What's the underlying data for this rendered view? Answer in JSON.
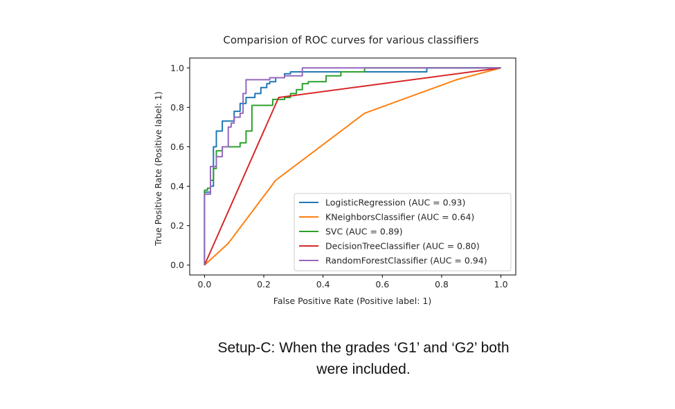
{
  "chart_data": {
    "type": "line",
    "title": "Comparision of ROC curves for various classifiers",
    "xlabel": "False Positive Rate (Positive label: 1)",
    "ylabel": "True Positive Rate (Positive label: 1)",
    "xlim": [
      -0.05,
      1.05
    ],
    "ylim": [
      -0.05,
      1.05
    ],
    "xticks": [
      "0.0",
      "0.2",
      "0.4",
      "0.6",
      "0.8",
      "1.0"
    ],
    "yticks": [
      "0.0",
      "0.2",
      "0.4",
      "0.6",
      "0.8",
      "1.0"
    ],
    "grid": false,
    "legend_position": "lower-right",
    "series": [
      {
        "name": "LogisticRegression (AUC = 0.93)",
        "color": "#1f77b4",
        "step": true,
        "x": [
          0.0,
          0.0,
          0.02,
          0.02,
          0.03,
          0.03,
          0.04,
          0.04,
          0.06,
          0.06,
          0.1,
          0.1,
          0.12,
          0.12,
          0.14,
          0.14,
          0.17,
          0.17,
          0.19,
          0.19,
          0.21,
          0.21,
          0.22,
          0.22,
          0.24,
          0.24,
          0.27,
          0.27,
          0.29,
          0.29,
          0.31,
          0.31,
          0.75,
          0.75,
          1.0
        ],
        "y": [
          0.0,
          0.37,
          0.37,
          0.4,
          0.4,
          0.6,
          0.6,
          0.68,
          0.68,
          0.73,
          0.73,
          0.78,
          0.78,
          0.82,
          0.82,
          0.85,
          0.85,
          0.87,
          0.87,
          0.9,
          0.9,
          0.92,
          0.92,
          0.93,
          0.93,
          0.95,
          0.95,
          0.97,
          0.97,
          0.98,
          0.98,
          0.98,
          0.98,
          1.0,
          1.0
        ]
      },
      {
        "name": "KNeighborsClassifier (AUC = 0.64)",
        "color": "#ff7f0e",
        "step": false,
        "x": [
          0.0,
          0.08,
          0.24,
          0.54,
          0.85,
          1.0
        ],
        "y": [
          0.0,
          0.11,
          0.43,
          0.77,
          0.94,
          1.0
        ]
      },
      {
        "name": "SVC (AUC = 0.89)",
        "color": "#2ca02c",
        "step": true,
        "x": [
          0.0,
          0.0,
          0.01,
          0.01,
          0.02,
          0.02,
          0.03,
          0.03,
          0.04,
          0.04,
          0.06,
          0.06,
          0.12,
          0.12,
          0.14,
          0.14,
          0.16,
          0.16,
          0.23,
          0.23,
          0.27,
          0.27,
          0.29,
          0.29,
          0.31,
          0.31,
          0.33,
          0.33,
          0.35,
          0.35,
          0.41,
          0.41,
          0.46,
          0.46,
          0.54,
          0.54,
          1.0
        ],
        "y": [
          0.0,
          0.38,
          0.38,
          0.39,
          0.39,
          0.43,
          0.43,
          0.49,
          0.49,
          0.58,
          0.58,
          0.6,
          0.6,
          0.62,
          0.62,
          0.68,
          0.68,
          0.81,
          0.81,
          0.84,
          0.84,
          0.85,
          0.85,
          0.87,
          0.87,
          0.89,
          0.89,
          0.92,
          0.92,
          0.93,
          0.93,
          0.96,
          0.96,
          0.98,
          0.98,
          1.0,
          1.0
        ]
      },
      {
        "name": "DecisionTreeClassifier (AUC = 0.80)",
        "color": "#d62728",
        "step": false,
        "x": [
          0.0,
          0.25,
          1.0
        ],
        "y": [
          0.0,
          0.85,
          1.0
        ]
      },
      {
        "name": "RandomForestClassifier (AUC = 0.94)",
        "color": "#9467bd",
        "step": true,
        "x": [
          0.0,
          0.0,
          0.02,
          0.02,
          0.04,
          0.04,
          0.06,
          0.06,
          0.08,
          0.08,
          0.09,
          0.09,
          0.1,
          0.1,
          0.12,
          0.12,
          0.13,
          0.13,
          0.14,
          0.14,
          0.22,
          0.22,
          0.27,
          0.27,
          0.33,
          0.33,
          1.0
        ],
        "y": [
          0.0,
          0.36,
          0.36,
          0.5,
          0.5,
          0.55,
          0.55,
          0.6,
          0.6,
          0.7,
          0.7,
          0.72,
          0.72,
          0.75,
          0.75,
          0.77,
          0.77,
          0.87,
          0.87,
          0.94,
          0.94,
          0.95,
          0.95,
          0.96,
          0.96,
          1.0,
          1.0
        ]
      }
    ]
  },
  "caption": {
    "line1": "Setup-C: When the grades ‘G1’ and ‘G2’ both",
    "line2": "were included."
  }
}
